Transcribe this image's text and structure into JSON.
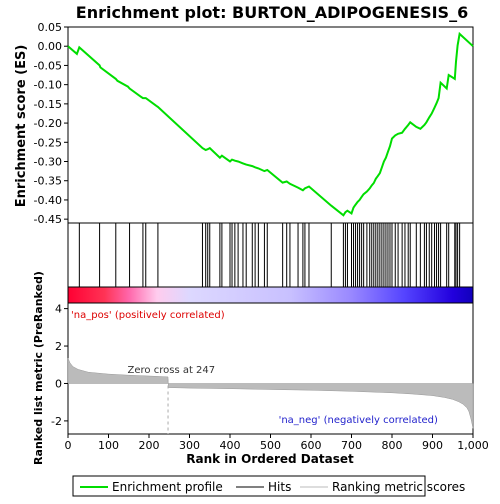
{
  "chart_data": {
    "type": "line",
    "title": "Enrichment plot: BURTON_ADIPOGENESIS_6",
    "panels": {
      "es": {
        "ylabel": "Enrichment score (ES)",
        "ylim": [
          -0.46,
          0.05
        ],
        "yticks": [
          0.05,
          0.0,
          -0.05,
          -0.1,
          -0.15,
          -0.2,
          -0.25,
          -0.3,
          -0.35,
          -0.4,
          -0.45
        ],
        "ytick_labels": [
          "0.05",
          "0.00",
          "-0.05",
          "-0.10",
          "-0.15",
          "-0.20",
          "-0.25",
          "-0.30",
          "-0.35",
          "-0.40",
          "-0.45"
        ],
        "series": {
          "color": "#00dd00",
          "points": [
            [
              0,
              0.0
            ],
            [
              22,
              -0.02
            ],
            [
              28,
              -0.003
            ],
            [
              78,
              -0.05
            ],
            [
              80,
              -0.055
            ],
            [
              118,
              -0.085
            ],
            [
              122,
              -0.09
            ],
            [
              148,
              -0.105
            ],
            [
              152,
              -0.11
            ],
            [
              178,
              -0.13
            ],
            [
              185,
              -0.135
            ],
            [
              192,
              -0.135
            ],
            [
              218,
              -0.155
            ],
            [
              222,
              -0.158
            ],
            [
              332,
              -0.265
            ],
            [
              340,
              -0.27
            ],
            [
              345,
              -0.268
            ],
            [
              350,
              -0.265
            ],
            [
              375,
              -0.29
            ],
            [
              380,
              -0.285
            ],
            [
              400,
              -0.3
            ],
            [
              405,
              -0.295
            ],
            [
              412,
              -0.298
            ],
            [
              420,
              -0.3
            ],
            [
              432,
              -0.305
            ],
            [
              440,
              -0.308
            ],
            [
              455,
              -0.312
            ],
            [
              462,
              -0.315
            ],
            [
              470,
              -0.318
            ],
            [
              485,
              -0.325
            ],
            [
              492,
              -0.322
            ],
            [
              530,
              -0.355
            ],
            [
              540,
              -0.352
            ],
            [
              548,
              -0.358
            ],
            [
              568,
              -0.368
            ],
            [
              580,
              -0.375
            ],
            [
              585,
              -0.37
            ],
            [
              595,
              -0.365
            ],
            [
              650,
              -0.415
            ],
            [
              680,
              -0.44
            ],
            [
              685,
              -0.432
            ],
            [
              690,
              -0.428
            ],
            [
              700,
              -0.435
            ],
            [
              705,
              -0.42
            ],
            [
              710,
              -0.412
            ],
            [
              715,
              -0.405
            ],
            [
              720,
              -0.4
            ],
            [
              725,
              -0.392
            ],
            [
              730,
              -0.385
            ],
            [
              738,
              -0.378
            ],
            [
              745,
              -0.37
            ],
            [
              750,
              -0.362
            ],
            [
              755,
              -0.356
            ],
            [
              760,
              -0.345
            ],
            [
              765,
              -0.338
            ],
            [
              770,
              -0.33
            ],
            [
              775,
              -0.315
            ],
            [
              780,
              -0.3
            ],
            [
              785,
              -0.29
            ],
            [
              790,
              -0.275
            ],
            [
              795,
              -0.26
            ],
            [
              800,
              -0.24
            ],
            [
              808,
              -0.232
            ],
            [
              815,
              -0.228
            ],
            [
              825,
              -0.225
            ],
            [
              832,
              -0.215
            ],
            [
              840,
              -0.205
            ],
            [
              845,
              -0.198
            ],
            [
              860,
              -0.21
            ],
            [
              870,
              -0.215
            ],
            [
              880,
              -0.205
            ],
            [
              885,
              -0.198
            ],
            [
              892,
              -0.185
            ],
            [
              898,
              -0.175
            ],
            [
              905,
              -0.16
            ],
            [
              910,
              -0.148
            ],
            [
              915,
              -0.135
            ],
            [
              920,
              -0.095
            ],
            [
              935,
              -0.11
            ],
            [
              940,
              -0.075
            ],
            [
              955,
              -0.085
            ],
            [
              958,
              -0.04
            ],
            [
              962,
              0.002
            ],
            [
              967,
              0.032
            ],
            [
              1000,
              0.0
            ]
          ]
        }
      },
      "hits": {
        "label": "Hits",
        "positions": [
          28,
          78,
          118,
          152,
          185,
          192,
          222,
          332,
          340,
          345,
          350,
          375,
          380,
          400,
          405,
          412,
          420,
          432,
          440,
          455,
          462,
          470,
          485,
          492,
          530,
          540,
          548,
          568,
          580,
          585,
          595,
          650,
          680,
          685,
          690,
          700,
          705,
          710,
          715,
          720,
          725,
          730,
          738,
          745,
          750,
          755,
          760,
          765,
          770,
          775,
          780,
          785,
          790,
          795,
          800,
          808,
          815,
          825,
          832,
          840,
          845,
          860,
          870,
          880,
          885,
          892,
          898,
          905,
          910,
          915,
          920,
          935,
          940,
          955,
          958,
          962,
          967
        ]
      },
      "ranked": {
        "ylabel": "Ranked list metric (PreRanked)",
        "xlabel": "Rank in Ordered Dataset",
        "ylim": [
          -2.7,
          4.3
        ],
        "yticks": [
          4,
          2,
          0,
          -2
        ],
        "ytick_labels": [
          "4",
          "2",
          "0",
          "-2"
        ],
        "xlim": [
          0,
          1000
        ],
        "xticks": [
          0,
          100,
          200,
          300,
          400,
          500,
          600,
          700,
          800,
          900,
          1000
        ],
        "xtick_labels": [
          "0",
          "100",
          "200",
          "300",
          "400",
          "500",
          "600",
          "700",
          "800",
          "900",
          "1,000"
        ],
        "metric_curve": [
          [
            0,
            1.35
          ],
          [
            5,
            1.1
          ],
          [
            12,
            0.9
          ],
          [
            25,
            0.75
          ],
          [
            50,
            0.6
          ],
          [
            100,
            0.5
          ],
          [
            150,
            0.44
          ],
          [
            200,
            0.4
          ],
          [
            247,
            0.35
          ],
          [
            248,
            -0.22
          ],
          [
            300,
            -0.25
          ],
          [
            400,
            -0.28
          ],
          [
            500,
            -0.32
          ],
          [
            600,
            -0.36
          ],
          [
            700,
            -0.42
          ],
          [
            800,
            -0.5
          ],
          [
            850,
            -0.56
          ],
          [
            900,
            -0.65
          ],
          [
            930,
            -0.75
          ],
          [
            950,
            -0.85
          ],
          [
            965,
            -0.98
          ],
          [
            975,
            -1.1
          ],
          [
            985,
            -1.3
          ],
          [
            990,
            -1.5
          ],
          [
            995,
            -1.9
          ],
          [
            1000,
            -2.4
          ]
        ],
        "zero_cross_label": "Zero cross at 247",
        "zero_cross_at": 247,
        "pos_label": "'na_pos' (positively correlated)",
        "neg_label": "'na_neg' (negatively correlated)"
      }
    },
    "legend": {
      "position": "bottom",
      "items": [
        {
          "label": "Enrichment profile",
          "color": "#00dd00"
        },
        {
          "label": "Hits",
          "color": "#000000"
        },
        {
          "label": "Ranking metric scores",
          "color": "#bbbbbb"
        }
      ]
    },
    "heat_colors": [
      "#ff0033",
      "#ff4466",
      "#ff88aa",
      "#ffbbee",
      "#ddccff",
      "#bbaaff",
      "#8877ff",
      "#4433ff",
      "#1100cc"
    ]
  }
}
